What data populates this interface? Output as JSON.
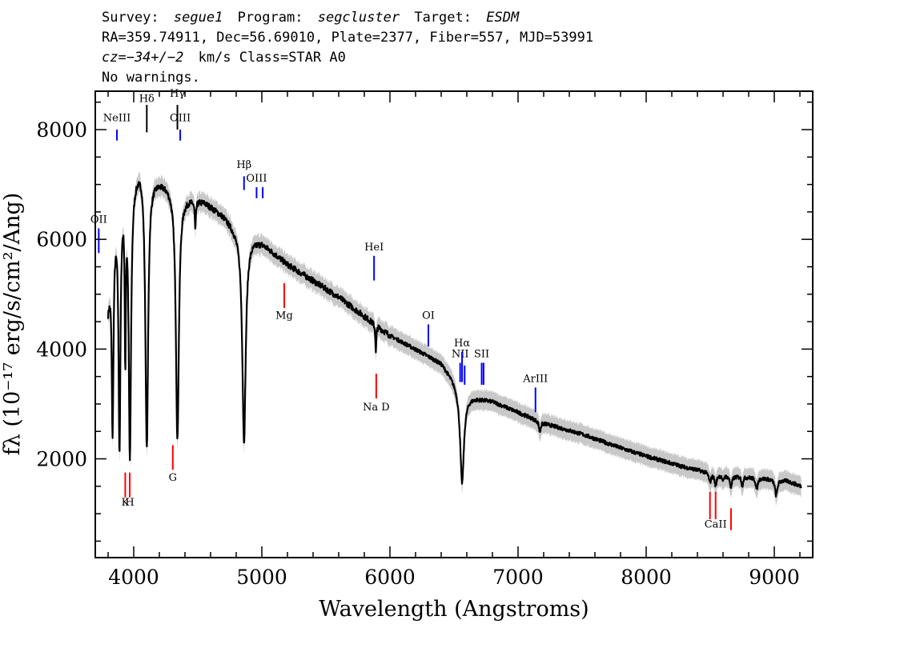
{
  "header": {
    "survey_label": "Survey:",
    "survey": "segue1",
    "program_label": "Program:",
    "program": "segcluster",
    "target_label": "Target:",
    "target": "ESDM",
    "line2": "RA=359.74911, Dec=56.69010, Plate=2377, Fiber=557, MJD=53991",
    "cz": "cz=−34+/−2",
    "class_text": "km/s Class=STAR A0",
    "warnings": "No warnings."
  },
  "chart_data": {
    "type": "line",
    "title": "",
    "xlabel": "Wavelength (Angstroms)",
    "ylabel": "fλ (10⁻¹⁷ erg/s/cm²/Ang)",
    "xlim": [
      3700,
      9300
    ],
    "ylim": [
      200,
      8700
    ],
    "x_ticks": [
      4000,
      5000,
      6000,
      7000,
      8000,
      9000
    ],
    "y_ticks": [
      2000,
      4000,
      6000,
      8000
    ],
    "x_minor_step": 200,
    "y_minor_step": 500,
    "continuum": {
      "name": "flux",
      "x": [
        3800,
        3850,
        3900,
        3950,
        4000,
        4060,
        4150,
        4250,
        4400,
        4550,
        4700,
        4800,
        4900,
        5000,
        5200,
        5400,
        5600,
        5800,
        6000,
        6200,
        6400,
        6600,
        6800,
        7000,
        7200,
        7500,
        7800,
        8000,
        8300,
        8600,
        8900,
        9100,
        9210
      ],
      "y": [
        4800,
        6300,
        6900,
        7150,
        7250,
        7450,
        7150,
        7050,
        6800,
        6700,
        6450,
        6200,
        6050,
        5950,
        5550,
        5250,
        4950,
        4600,
        4250,
        4000,
        3750,
        3150,
        3050,
        2850,
        2650,
        2450,
        2200,
        2050,
        1850,
        1700,
        1650,
        1600,
        1500
      ]
    },
    "absorption_lines": [
      {
        "center": 3835,
        "width": 8,
        "depth": 0.58
      },
      {
        "center": 3889,
        "width": 9,
        "depth": 0.68
      },
      {
        "center": 3934,
        "width": 5,
        "depth": 0.45
      },
      {
        "center": 3970,
        "width": 11,
        "depth": 0.72
      },
      {
        "center": 4102,
        "width": 13,
        "depth": 0.7
      },
      {
        "center": 4341,
        "width": 14,
        "depth": 0.66
      },
      {
        "center": 4481,
        "width": 5,
        "depth": 0.08
      },
      {
        "center": 4861,
        "width": 16,
        "depth": 0.62
      },
      {
        "center": 5890,
        "width": 4,
        "depth": 0.12
      },
      {
        "center": 6563,
        "width": 18,
        "depth": 0.52
      },
      {
        "center": 7170,
        "width": 8,
        "depth": 0.07
      },
      {
        "center": 8498,
        "width": 10,
        "depth": 0.1
      },
      {
        "center": 8542,
        "width": 10,
        "depth": 0.12
      },
      {
        "center": 8598,
        "width": 6,
        "depth": 0.07
      },
      {
        "center": 8662,
        "width": 10,
        "depth": 0.12
      },
      {
        "center": 8750,
        "width": 7,
        "depth": 0.1
      },
      {
        "center": 8863,
        "width": 9,
        "depth": 0.13
      },
      {
        "center": 9015,
        "width": 11,
        "depth": 0.18
      }
    ],
    "error_band_halfwidth": 180,
    "error_band_color": "#c8c8c8",
    "flux_color": "#000000",
    "emission_color": "#0000ff",
    "absorption_color": "#ff0000",
    "neutral_color": "#000000",
    "line_markers": [
      {
        "label": "OII",
        "x": 3727,
        "y0": 5750,
        "y1": 6200,
        "ly": 6300,
        "color": "blue"
      },
      {
        "label": "NeIII",
        "x": 3869,
        "y0": 7800,
        "y1": 8000,
        "ly": 8150,
        "color": "blue"
      },
      {
        "label": "Hδ",
        "x": 4102,
        "y0": 7950,
        "y1": 8450,
        "ly": 8500,
        "color": "black"
      },
      {
        "label": "Hγ",
        "x": 4341,
        "y0": 8000,
        "y1": 8450,
        "ly": 8600,
        "color": "black"
      },
      {
        "label": "OIII",
        "x": 4363,
        "y0": 7800,
        "y1": 8000,
        "ly": 8150,
        "color": "blue"
      },
      {
        "label": "Hβ",
        "x": 4861,
        "y0": 6900,
        "y1": 7150,
        "ly": 7300,
        "color": "blue"
      },
      {
        "label": "OIII",
        "x": 4959,
        "y0": 6750,
        "y1": 6950,
        "ly": 7050,
        "color": "blue"
      },
      {
        "label": "",
        "x": 5007,
        "y0": 6750,
        "y1": 6950,
        "ly": 0,
        "color": "blue"
      },
      {
        "label": "HeI",
        "x": 5876,
        "y0": 5250,
        "y1": 5700,
        "ly": 5800,
        "color": "blue"
      },
      {
        "label": "OI",
        "x": 6300,
        "y0": 4050,
        "y1": 4450,
        "ly": 4550,
        "color": "blue"
      },
      {
        "label": "NII",
        "x": 6548,
        "y0": 3400,
        "y1": 3750,
        "ly": 3850,
        "color": "blue"
      },
      {
        "label": "Hα",
        "x": 6563,
        "y0": 3400,
        "y1": 3950,
        "ly": 4050,
        "color": "blue"
      },
      {
        "label": "",
        "x": 6583,
        "y0": 3350,
        "y1": 3700,
        "ly": 0,
        "color": "blue"
      },
      {
        "label": "SII",
        "x": 6716,
        "y0": 3350,
        "y1": 3750,
        "ly": 3850,
        "color": "blue"
      },
      {
        "label": "",
        "x": 6731,
        "y0": 3350,
        "y1": 3750,
        "ly": 0,
        "color": "blue"
      },
      {
        "label": "ArIII",
        "x": 7136,
        "y0": 2850,
        "y1": 3300,
        "ly": 3400,
        "color": "blue"
      },
      {
        "label": "K",
        "x": 3934,
        "y0": 1300,
        "y1": 1750,
        "ly": 1150,
        "color": "red"
      },
      {
        "label": "H",
        "x": 3969,
        "y0": 1300,
        "y1": 1750,
        "ly": 1150,
        "color": "red"
      },
      {
        "label": "G",
        "x": 4305,
        "y0": 1800,
        "y1": 2250,
        "ly": 1600,
        "color": "red"
      },
      {
        "label": "Mg",
        "x": 5175,
        "y0": 4750,
        "y1": 5200,
        "ly": 4550,
        "color": "red"
      },
      {
        "label": "Na D",
        "x": 5893,
        "y0": 3100,
        "y1": 3550,
        "ly": 2880,
        "color": "red"
      },
      {
        "label": "",
        "x": 8498,
        "y0": 900,
        "y1": 1400,
        "ly": 0,
        "color": "red"
      },
      {
        "label": "CaII",
        "x": 8542,
        "y0": 900,
        "y1": 1400,
        "ly": 750,
        "color": "red"
      },
      {
        "label": "",
        "x": 8662,
        "y0": 700,
        "y1": 1100,
        "ly": 0,
        "color": "red"
      }
    ]
  }
}
